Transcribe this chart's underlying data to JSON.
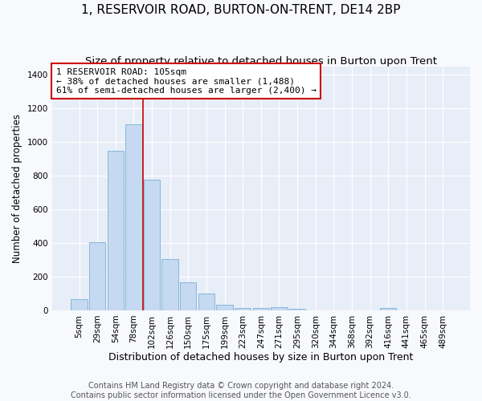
{
  "title": "1, RESERVOIR ROAD, BURTON-ON-TRENT, DE14 2BP",
  "subtitle": "Size of property relative to detached houses in Burton upon Trent",
  "xlabel": "Distribution of detached houses by size in Burton upon Trent",
  "ylabel": "Number of detached properties",
  "bar_color": "#c5d9f0",
  "bar_edge_color": "#7aafd4",
  "background_color": "#e8eef8",
  "grid_color": "#d0d8e8",
  "categories": [
    "5sqm",
    "29sqm",
    "54sqm",
    "78sqm",
    "102sqm",
    "126sqm",
    "150sqm",
    "175sqm",
    "199sqm",
    "223sqm",
    "247sqm",
    "271sqm",
    "295sqm",
    "320sqm",
    "344sqm",
    "368sqm",
    "392sqm",
    "416sqm",
    "441sqm",
    "465sqm",
    "489sqm"
  ],
  "values": [
    65,
    405,
    950,
    1105,
    775,
    305,
    165,
    100,
    35,
    15,
    15,
    20,
    10,
    0,
    0,
    0,
    0,
    15,
    0,
    0,
    0
  ],
  "vline_pos": 3.5,
  "annotation_line1": "1 RESERVOIR ROAD: 105sqm",
  "annotation_line2": "← 38% of detached houses are smaller (1,488)",
  "annotation_line3": "61% of semi-detached houses are larger (2,400) →",
  "annotation_box_facecolor": "#ffffff",
  "annotation_box_edgecolor": "#cc0000",
  "vline_color": "#cc0000",
  "footer1": "Contains HM Land Registry data © Crown copyright and database right 2024.",
  "footer2": "Contains public sector information licensed under the Open Government Licence v3.0.",
  "ylim_max": 1450,
  "ytick_interval": 200,
  "fig_facecolor": "#f8f9fc",
  "title_fontsize": 11,
  "subtitle_fontsize": 9.5,
  "ylabel_fontsize": 8.5,
  "xlabel_fontsize": 9,
  "tick_fontsize": 7.5,
  "annotation_fontsize": 8,
  "footer_fontsize": 7
}
